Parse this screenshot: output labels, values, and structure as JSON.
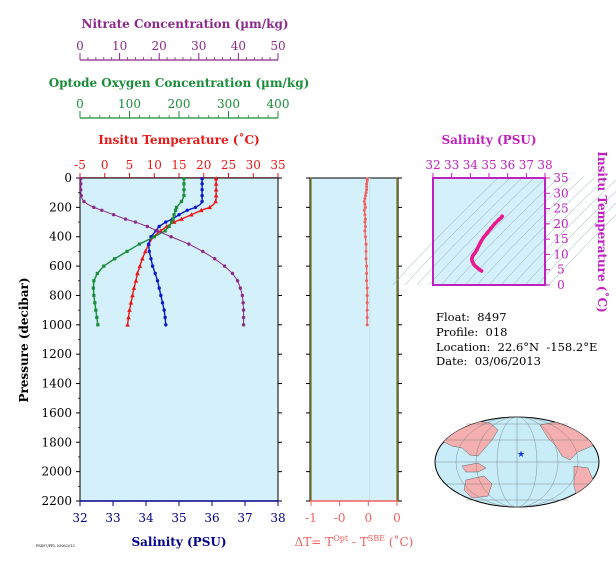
{
  "colors": {
    "nitrate": "#8b2a8b",
    "oxygen": "#1a8c3a",
    "temperature": "#e81818",
    "salinity": "#0a1ac8",
    "salinity_axis": "#00008b",
    "dt": "#f06060",
    "ts_curve": "#e81890",
    "ts_axis": "#c020c0",
    "plot_bg": "#d4f0fa",
    "map_land": "#f4b0b0",
    "map_ocean": "#c8ecf8",
    "float_marker": "#1a3ad8"
  },
  "info": {
    "float": "Float:  8497",
    "profile": "Profile:  018",
    "location": "Location:  22.6°N  -158.2°E",
    "date": "Date:  03/06/2013"
  },
  "footnote": "F8497/PFL 03062013",
  "chart_data": [
    {
      "type": "line",
      "panel": "main-profile",
      "ylabel": "Pressure (decibar)",
      "ylim": [
        2200,
        0
      ],
      "yticks": [
        0,
        200,
        400,
        600,
        800,
        1000,
        1200,
        1400,
        1600,
        1800,
        2000,
        2200
      ],
      "axes": {
        "nitrate": {
          "label": "Nitrate Concentration (µm/kg)",
          "range": [
            0,
            50
          ],
          "ticks": [
            0,
            10,
            20,
            30,
            40,
            50
          ]
        },
        "oxygen": {
          "label": "Optode Oxygen Concentration (µm/kg)",
          "range": [
            0,
            400
          ],
          "ticks": [
            0,
            100,
            200,
            300,
            400
          ]
        },
        "temperature": {
          "label": "Insitu Temperature (˚C)",
          "range": [
            -5,
            35
          ],
          "ticks": [
            -5,
            0,
            5,
            10,
            15,
            20,
            25,
            30,
            35
          ]
        },
        "salinity": {
          "label": "Salinity (PSU)",
          "range": [
            32,
            38
          ],
          "ticks": [
            32,
            33,
            34,
            35,
            36,
            37,
            38
          ]
        }
      },
      "series": [
        {
          "key": "temperature",
          "marker": "triangle",
          "pressure": [
            5,
            20,
            40,
            60,
            80,
            100,
            120,
            140,
            160,
            180,
            200,
            220,
            250,
            280,
            300,
            330,
            360,
            400,
            450,
            500,
            550,
            600,
            650,
            700,
            750,
            800,
            850,
            900,
            950,
            1000
          ],
          "values": [
            22.5,
            22.5,
            22.5,
            22.5,
            22.5,
            22.5,
            22.5,
            22.5,
            22.4,
            22.0,
            21.2,
            19.5,
            17.5,
            15.5,
            14.0,
            12.5,
            11.3,
            9.8,
            8.9,
            8.2,
            7.6,
            7.1,
            6.6,
            6.3,
            5.9,
            5.6,
            5.3,
            5.0,
            4.8,
            4.6
          ]
        },
        {
          "key": "salinity",
          "marker": "dot",
          "pressure": [
            5,
            20,
            40,
            60,
            80,
            100,
            120,
            140,
            160,
            180,
            200,
            220,
            250,
            280,
            300,
            330,
            360,
            400,
            450,
            500,
            550,
            600,
            650,
            700,
            750,
            800,
            850,
            900,
            950,
            1000
          ],
          "values": [
            35.7,
            35.7,
            35.7,
            35.7,
            35.7,
            35.7,
            35.7,
            35.7,
            35.7,
            35.65,
            35.5,
            35.25,
            35.0,
            34.8,
            34.6,
            34.4,
            34.3,
            34.15,
            34.08,
            34.1,
            34.15,
            34.2,
            34.28,
            34.35,
            34.4,
            34.45,
            34.5,
            34.55,
            34.58,
            34.6
          ]
        },
        {
          "key": "oxygen",
          "marker": "square",
          "pressure": [
            5,
            20,
            40,
            60,
            80,
            100,
            120,
            140,
            160,
            180,
            200,
            220,
            250,
            280,
            300,
            330,
            360,
            400,
            450,
            500,
            550,
            600,
            650,
            700,
            750,
            800,
            850,
            900,
            950,
            1000
          ],
          "values": [
            210,
            210,
            210,
            210,
            210,
            210,
            210,
            208,
            205,
            200,
            195,
            193,
            190,
            188,
            185,
            180,
            172,
            150,
            120,
            95,
            70,
            48,
            35,
            28,
            27,
            28,
            30,
            32,
            34,
            36
          ]
        },
        {
          "key": "nitrate",
          "marker": "dot",
          "pressure": [
            5,
            20,
            40,
            60,
            80,
            100,
            120,
            140,
            160,
            180,
            200,
            220,
            250,
            280,
            300,
            330,
            360,
            400,
            450,
            500,
            550,
            600,
            650,
            700,
            750,
            800,
            850,
            900,
            950,
            1000
          ],
          "values": [
            0.2,
            0.2,
            0.2,
            0.2,
            0.2,
            0.2,
            0.3,
            0.5,
            1.0,
            2.0,
            3.5,
            5.5,
            8.5,
            11.5,
            14.0,
            17.0,
            19.5,
            23.0,
            27.5,
            31.0,
            34.0,
            36.5,
            38.5,
            39.8,
            40.5,
            41.0,
            41.2,
            41.3,
            41.3,
            41.3
          ]
        }
      ]
    },
    {
      "type": "line",
      "panel": "dt-profile",
      "xlabel_main": "ΔT= T",
      "xlabel_sup1": "Opt",
      "xlabel_mid": " - T",
      "xlabel_sup2": "SBE",
      "xlabel_end": " (˚C)",
      "xlim": [
        -1,
        0.5
      ],
      "xticks": [
        -1,
        -0.5,
        0,
        0.5
      ],
      "xtick_labels": [
        "-1",
        "-0",
        "0",
        "0"
      ],
      "pressure": [
        5,
        20,
        40,
        60,
        80,
        100,
        120,
        140,
        160,
        180,
        200,
        220,
        250,
        280,
        300,
        330,
        360,
        400,
        450,
        500,
        550,
        600,
        650,
        700,
        750,
        800,
        850,
        900,
        950,
        1000
      ],
      "values": [
        -0.02,
        -0.02,
        -0.03,
        -0.03,
        -0.03,
        -0.04,
        -0.05,
        -0.06,
        -0.07,
        -0.06,
        -0.05,
        -0.07,
        -0.06,
        -0.05,
        -0.06,
        -0.05,
        -0.06,
        -0.05,
        -0.04,
        -0.04,
        -0.04,
        -0.03,
        -0.03,
        -0.03,
        -0.02,
        -0.02,
        -0.02,
        -0.02,
        -0.02,
        -0.02
      ]
    },
    {
      "type": "scatter",
      "panel": "ts-diagram",
      "title": "Salinity (PSU)",
      "ylabel": "Insitu Temperature (˚C)",
      "xlim": [
        32,
        38
      ],
      "ylim": [
        0,
        35
      ],
      "xticks": [
        32,
        33,
        34,
        35,
        36,
        37,
        38
      ],
      "yticks": [
        0,
        5,
        10,
        15,
        20,
        25,
        30,
        35
      ],
      "salinity": [
        35.7,
        35.7,
        35.65,
        35.5,
        35.3,
        35.1,
        34.9,
        34.7,
        34.55,
        34.45,
        34.35,
        34.25,
        34.15,
        34.1,
        34.08,
        34.1,
        34.15,
        34.2,
        34.3,
        34.4,
        34.5,
        34.6
      ],
      "temperature": [
        22.5,
        22.4,
        22.0,
        21.2,
        20.0,
        18.5,
        17.0,
        15.5,
        14.0,
        12.8,
        11.5,
        10.5,
        9.8,
        9.0,
        8.4,
        7.8,
        7.2,
        6.6,
        6.0,
        5.5,
        5.0,
        4.6
      ]
    }
  ]
}
